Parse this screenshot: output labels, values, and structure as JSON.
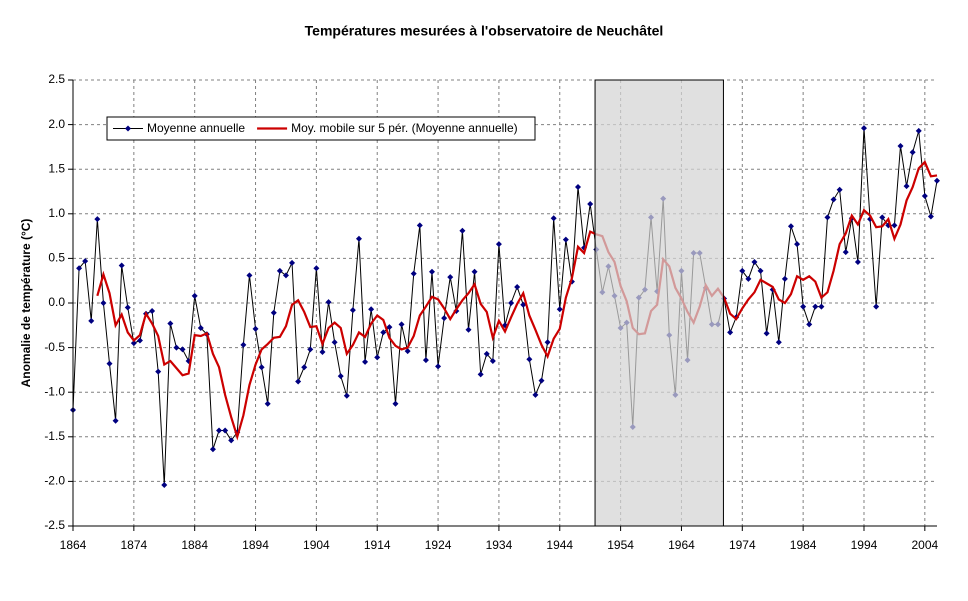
{
  "chart_data": {
    "type": "line",
    "title": "Températures mesurées à l'observatoire de Neuchâtel",
    "y_label": "Anomalie de température (°C)",
    "x": [
      1864,
      1865,
      1866,
      1867,
      1868,
      1869,
      1870,
      1871,
      1872,
      1873,
      1874,
      1875,
      1876,
      1877,
      1878,
      1879,
      1880,
      1881,
      1882,
      1883,
      1884,
      1885,
      1886,
      1887,
      1888,
      1889,
      1890,
      1891,
      1892,
      1893,
      1894,
      1895,
      1896,
      1897,
      1898,
      1899,
      1900,
      1901,
      1902,
      1903,
      1904,
      1905,
      1906,
      1907,
      1908,
      1909,
      1910,
      1911,
      1912,
      1913,
      1914,
      1915,
      1916,
      1917,
      1918,
      1919,
      1920,
      1921,
      1922,
      1923,
      1924,
      1925,
      1926,
      1927,
      1928,
      1929,
      1930,
      1931,
      1932,
      1933,
      1934,
      1935,
      1936,
      1937,
      1938,
      1939,
      1940,
      1941,
      1942,
      1943,
      1944,
      1945,
      1946,
      1947,
      1948,
      1949,
      1950,
      1951,
      1952,
      1953,
      1954,
      1955,
      1956,
      1957,
      1958,
      1959,
      1960,
      1961,
      1962,
      1963,
      1964,
      1965,
      1966,
      1967,
      1968,
      1969,
      1970,
      1971,
      1972,
      1973,
      1974,
      1975,
      1976,
      1977,
      1978,
      1979,
      1980,
      1981,
      1982,
      1983,
      1984,
      1985,
      1986,
      1987,
      1988,
      1989,
      1990,
      1991,
      1992,
      1993,
      1994,
      1995,
      1996,
      1997,
      1998,
      1999,
      2000,
      2001,
      2002,
      2003,
      2004,
      2005,
      2006
    ],
    "series": [
      {
        "name": "Moyenne annuelle",
        "color": "#000080",
        "line_color": "#000000",
        "marker": "diamond",
        "values": [
          -1.2,
          0.39,
          0.47,
          -0.2,
          0.94,
          0,
          -0.68,
          -1.32,
          0.42,
          -0.05,
          -0.45,
          -0.42,
          -0.12,
          -0.09,
          -0.77,
          -2.04,
          -0.23,
          -0.5,
          -0.52,
          -0.65,
          0.08,
          -0.28,
          -0.35,
          -1.64,
          -1.43,
          -1.43,
          -1.54,
          -1.45,
          -0.47,
          0.31,
          -0.29,
          -0.72,
          -1.13,
          -0.11,
          0.36,
          0.31,
          0.45,
          -0.88,
          -0.72,
          -0.52,
          0.39,
          -0.55,
          0.01,
          -0.44,
          -0.82,
          -1.04,
          -0.08,
          0.72,
          -0.66,
          -0.07,
          -0.61,
          -0.33,
          -0.27,
          -1.13,
          -0.24,
          -0.54,
          0.33,
          0.87,
          -0.64,
          0.35,
          -0.71,
          -0.17,
          0.29,
          -0.09,
          0.81,
          -0.3,
          0.35,
          -0.8,
          -0.57,
          -0.65,
          0.66,
          -0.25,
          0,
          0.18,
          -0.02,
          -0.63,
          -1.03,
          -0.87,
          -0.44,
          0.95,
          -0.07,
          0.71,
          0.24,
          1.3,
          0.62,
          1.11,
          0.6,
          0.12,
          0.41,
          0.08,
          -0.28,
          -0.22,
          -1.39,
          0.06,
          0.15,
          0.96,
          0.13,
          1.17,
          -0.36,
          -1.03,
          0.36,
          -0.64,
          0.56,
          0.56,
          0.17,
          -0.24,
          -0.24,
          0.05,
          -0.33,
          -0.16,
          0.36,
          0.27,
          0.46,
          0.36,
          -0.34,
          0.15,
          -0.44,
          0.27,
          0.86,
          0.66,
          -0.04,
          -0.24,
          -0.04,
          -0.04,
          0.96,
          1.16,
          1.27,
          0.57,
          0.95,
          0.46,
          1.96,
          0.94,
          -0.04,
          0.96,
          0.87,
          0.87,
          1.76,
          1.31,
          1.69,
          1.93,
          1.2,
          0.97,
          1.37
        ]
      },
      {
        "name": "Moy. mobile sur 5 pér. (Moyenne annuelle)",
        "color": "#cc0000",
        "values": [
          null,
          null,
          null,
          null,
          0.08,
          0.32,
          0.11,
          -0.25,
          -0.13,
          -0.33,
          -0.42,
          -0.36,
          -0.12,
          -0.23,
          -0.37,
          -0.69,
          -0.65,
          -0.73,
          -0.81,
          -0.79,
          -0.36,
          -0.37,
          -0.34,
          -0.57,
          -0.72,
          -1.03,
          -1.28,
          -1.5,
          -1.26,
          -0.92,
          -0.69,
          -0.52,
          -0.46,
          -0.39,
          -0.38,
          -0.26,
          -0.02,
          0.03,
          -0.1,
          -0.27,
          -0.26,
          -0.46,
          -0.28,
          -0.22,
          -0.28,
          -0.57,
          -0.47,
          -0.33,
          -0.38,
          -0.23,
          -0.14,
          -0.19,
          -0.39,
          -0.48,
          -0.52,
          -0.5,
          -0.37,
          -0.14,
          -0.04,
          0.07,
          0.04,
          -0.06,
          -0.18,
          -0.07,
          0.03,
          0.11,
          0.21,
          -0.01,
          -0.1,
          -0.39,
          -0.2,
          -0.32,
          -0.16,
          -0.01,
          0.11,
          -0.14,
          -0.3,
          -0.47,
          -0.6,
          -0.4,
          -0.29,
          0.06,
          0.28,
          0.63,
          0.56,
          0.8,
          0.77,
          0.75,
          0.57,
          0.46,
          0.19,
          0.02,
          -0.28,
          -0.35,
          -0.34,
          -0.09,
          -0.02,
          0.49,
          0.41,
          0.17,
          0.05,
          -0.1,
          -0.22,
          -0.04,
          0.2,
          0.08,
          0.16,
          0.06,
          -0.12,
          -0.18,
          -0.06,
          0.04,
          0.12,
          0.26,
          0.22,
          0.18,
          0.04,
          0,
          0.1,
          0.3,
          0.26,
          0.3,
          0.24,
          0.06,
          0.12,
          0.36,
          0.66,
          0.78,
          0.98,
          0.88,
          1.04,
          0.98,
          0.85,
          0.86,
          0.94,
          0.72,
          0.88,
          1.15,
          1.3,
          1.51,
          1.58,
          1.42,
          1.43
        ]
      }
    ],
    "xlim": [
      1864,
      2006
    ],
    "xticks": [
      1864,
      1874,
      1884,
      1894,
      1904,
      1914,
      1924,
      1934,
      1944,
      1954,
      1964,
      1974,
      1984,
      1994,
      2004
    ],
    "ylim": [
      -2.5,
      2.5
    ],
    "yticks": [
      -2.5,
      {
        "value": -2,
        "label": "-2.0"
      },
      -1.5,
      {
        "value": -1,
        "label": "-1.0"
      },
      -0.5,
      {
        "value": 0,
        "label": "0.0"
      },
      0.5,
      {
        "value": 1,
        "label": "1.0"
      },
      1.5,
      {
        "value": 2,
        "label": "2.0"
      },
      2.5
    ],
    "grid": true,
    "highlight_x": [
      1949.8,
      1970.9
    ],
    "highlight_color": "#d4d4d4"
  }
}
